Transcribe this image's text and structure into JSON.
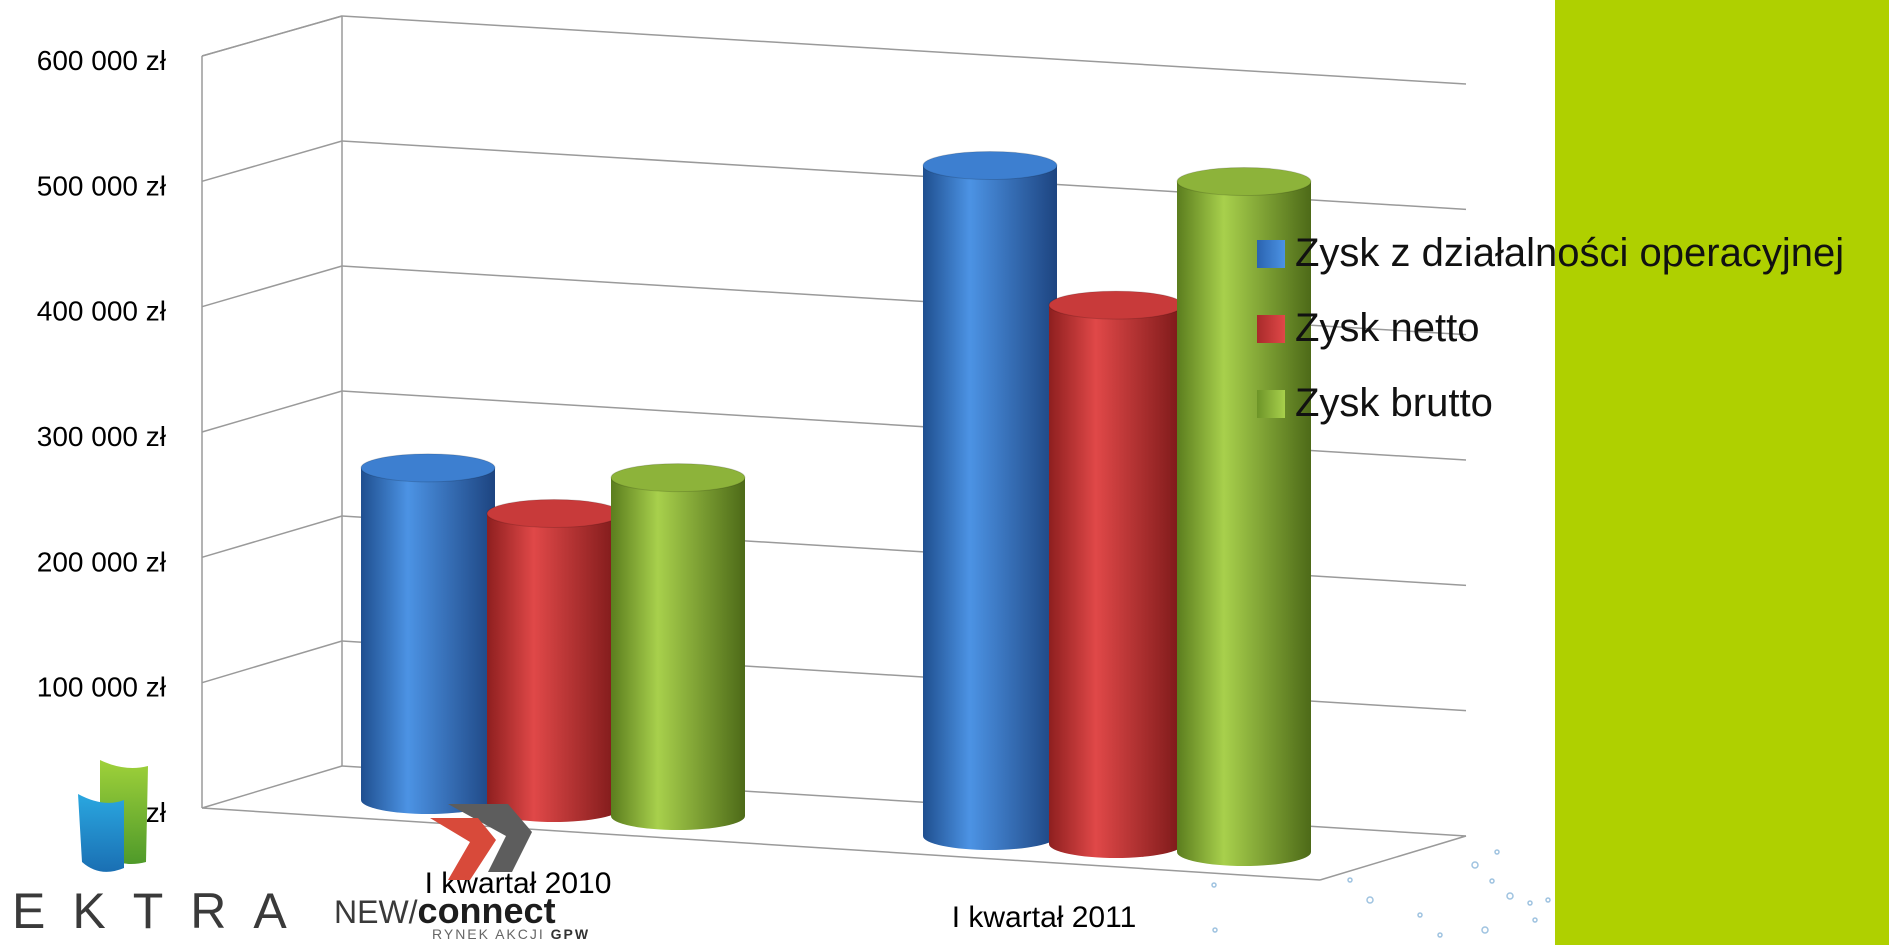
{
  "chart_data": {
    "type": "bar",
    "style": "3d-cylinder",
    "categories": [
      "I kwartał 2010",
      "I kwartał 2011"
    ],
    "series": [
      {
        "name": "Zysk z działalności operacyjnej",
        "color": "#3d7fd0",
        "values": [
          265000,
          535000
        ]
      },
      {
        "name": "Zysk netto",
        "color": "#c83a3a",
        "values": [
          235000,
          430000
        ]
      },
      {
        "name": "Zysk brutto",
        "color": "#8db33a",
        "values": [
          270000,
          535000
        ]
      }
    ],
    "y_ticks": [
      "0 zł",
      "100 000 zł",
      "200 000 zł",
      "300 000 zł",
      "400 000 zł",
      "500 000 zł",
      "600 000 zł"
    ],
    "ylim": [
      0,
      600000
    ],
    "grid": true,
    "legend_position": "right"
  },
  "logos": {
    "ektra_text": "EKTRA",
    "newconnect_prefix": "NEW/",
    "newconnect_bold": "connect",
    "newconnect_tagline": "RYNEK AKCJI",
    "newconnect_tagline_bold": "GPW"
  },
  "colors": {
    "side_panel": "#afd000"
  }
}
